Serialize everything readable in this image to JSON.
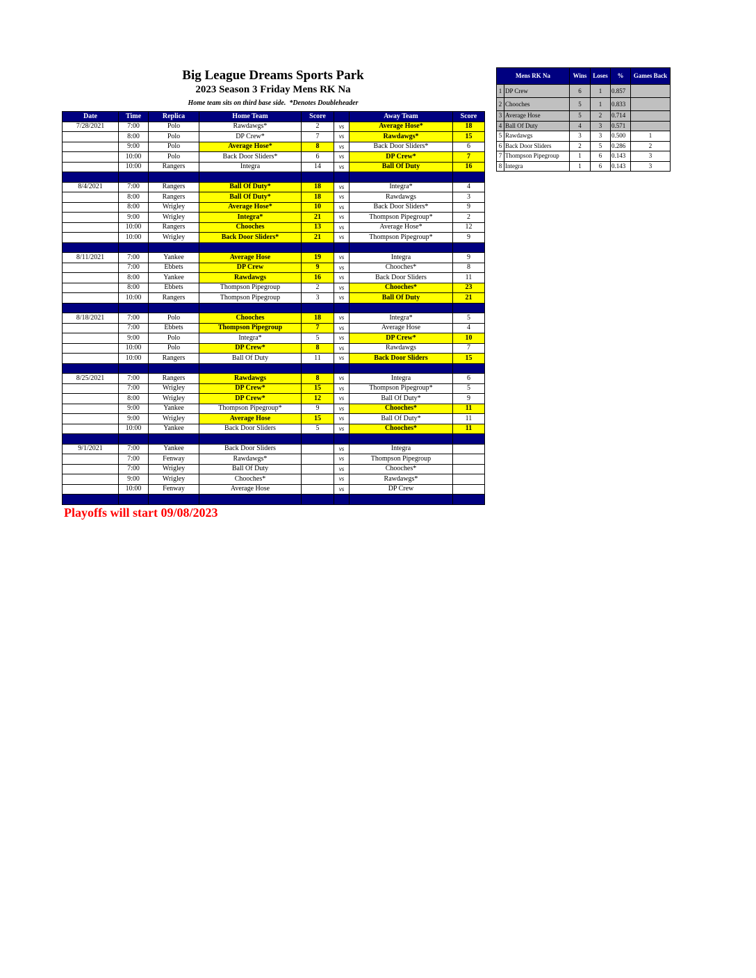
{
  "header": {
    "title": "Big League Dreams Sports Park",
    "subtitle": "2023 Season 3 Friday Mens RK Na",
    "note": "Home team sits on third base side.  *Denotes Doubleheader"
  },
  "schedule": {
    "columns": [
      "Date",
      "Time",
      "Replica",
      "Home Team",
      "Score",
      "Away Team",
      "Score"
    ],
    "vs_label": "vs",
    "weeks": [
      {
        "date": "7/28/2021",
        "games": [
          {
            "time": "7:00",
            "field": "Polo",
            "home": "Rawdawgs*",
            "home_score": 2,
            "away": "Average Hose*",
            "away_score": 18
          },
          {
            "time": "8:00",
            "field": "Polo",
            "home": "DP Crew*",
            "home_score": 7,
            "away": "Rawdawgs*",
            "away_score": 15
          },
          {
            "time": "9:00",
            "field": "Polo",
            "home": "Average Hose*",
            "home_score": 8,
            "away": "Back Door Sliders*",
            "away_score": 6
          },
          {
            "time": "10:00",
            "field": "Polo",
            "home": "Back Door Sliders*",
            "home_score": 6,
            "away": "DP Crew*",
            "away_score": 7
          },
          {
            "time": "10:00",
            "field": "Rangers",
            "home": "Integra",
            "home_score": 14,
            "away": "Ball Of Duty",
            "away_score": 16
          }
        ]
      },
      {
        "date": "8/4/2021",
        "games": [
          {
            "time": "7:00",
            "field": "Rangers",
            "home": "Ball Of Duty*",
            "home_score": 18,
            "away": "Integra*",
            "away_score": 4
          },
          {
            "time": "8:00",
            "field": "Rangers",
            "home": "Ball Of Duty*",
            "home_score": 18,
            "away": "Rawdawgs",
            "away_score": 3
          },
          {
            "time": "8:00",
            "field": "Wrigley",
            "home": "Average Hose*",
            "home_score": 10,
            "away": "Back Door Sliders*",
            "away_score": 9
          },
          {
            "time": "9:00",
            "field": "Wrigley",
            "home": "Integra*",
            "home_score": 21,
            "away": "Thompson Pipegroup*",
            "away_score": 2
          },
          {
            "time": "10:00",
            "field": "Rangers",
            "home": "Chooches",
            "home_score": 13,
            "away": "Average Hose*",
            "away_score": 12
          },
          {
            "time": "10:00",
            "field": "Wrigley",
            "home": "Back Door Sliders*",
            "home_score": 21,
            "away": "Thompson Pipegroup*",
            "away_score": 9
          }
        ]
      },
      {
        "date": "8/11/2021",
        "games": [
          {
            "time": "7:00",
            "field": "Yankee",
            "home": "Average Hose",
            "home_score": 19,
            "away": "Integra",
            "away_score": 9
          },
          {
            "time": "7:00",
            "field": "Ebbets",
            "home": "DP Crew",
            "home_score": 9,
            "away": "Chooches*",
            "away_score": 8
          },
          {
            "time": "8:00",
            "field": "Yankee",
            "home": "Rawdawgs",
            "home_score": 16,
            "away": "Back Door Sliders",
            "away_score": 11
          },
          {
            "time": "8:00",
            "field": "Ebbets",
            "home": "Thompson Pipegroup",
            "home_score": 2,
            "away": "Chooches*",
            "away_score": 23
          },
          {
            "time": "10:00",
            "field": "Rangers",
            "home": "Thompson Pipegroup",
            "home_score": 3,
            "away": "Ball Of Duty",
            "away_score": 21
          }
        ]
      },
      {
        "date": "8/18/2021",
        "games": [
          {
            "time": "7:00",
            "field": "Polo",
            "home": "Chooches",
            "home_score": 18,
            "away": "Integra*",
            "away_score": 5
          },
          {
            "time": "7:00",
            "field": "Ebbets",
            "home": "Thompson Pipegroup",
            "home_score": 7,
            "away": "Average Hose",
            "away_score": 4
          },
          {
            "time": "9:00",
            "field": "Polo",
            "home": "Integra*",
            "home_score": 5,
            "away": "DP Crew*",
            "away_score": 10
          },
          {
            "time": "10:00",
            "field": "Polo",
            "home": "DP Crew*",
            "home_score": 8,
            "away": "Rawdawgs",
            "away_score": 7
          },
          {
            "time": "10:00",
            "field": "Rangers",
            "home": "Ball Of Duty",
            "home_score": 11,
            "away": "Back Door Sliders",
            "away_score": 15
          }
        ]
      },
      {
        "date": "8/25/2021",
        "games": [
          {
            "time": "7:00",
            "field": "Rangers",
            "home": "Rawdawgs",
            "home_score": 8,
            "away": "Integra",
            "away_score": 6
          },
          {
            "time": "7:00",
            "field": "Wrigley",
            "home": "DP Crew*",
            "home_score": 15,
            "away": "Thompson Pipegroup*",
            "away_score": 5
          },
          {
            "time": "8:00",
            "field": "Wrigley",
            "home": "DP Crew*",
            "home_score": 12,
            "away": "Ball Of Duty*",
            "away_score": 9
          },
          {
            "time": "9:00",
            "field": "Yankee",
            "home": "Thompson Pipegroup*",
            "home_score": 9,
            "away": "Chooches*",
            "away_score": 11
          },
          {
            "time": "9:00",
            "field": "Wrigley",
            "home": "Average Hose",
            "home_score": 15,
            "away": "Ball Of Duty*",
            "away_score": 11
          },
          {
            "time": "10:00",
            "field": "Yankee",
            "home": "Back Door Sliders",
            "home_score": 5,
            "away": "Chooches*",
            "away_score": 11
          }
        ]
      },
      {
        "date": "9/1/2021",
        "games": [
          {
            "time": "7:00",
            "field": "Yankee",
            "home": "Back Door Sliders",
            "home_score": null,
            "away": "Integra",
            "away_score": null
          },
          {
            "time": "7:00",
            "field": "Fenway",
            "home": "Rawdawgs*",
            "home_score": null,
            "away": "Thompson Pipegroup",
            "away_score": null
          },
          {
            "time": "7:00",
            "field": "Wrigley",
            "home": "Ball Of Duty",
            "home_score": null,
            "away": "Chooches*",
            "away_score": null
          },
          {
            "time": "9:00",
            "field": "Wrigley",
            "home": "Chooches*",
            "home_score": null,
            "away": "Rawdawgs*",
            "away_score": null
          },
          {
            "time": "10:00",
            "field": "Fenway",
            "home": "Average Hose",
            "home_score": null,
            "away": "DP Crew",
            "away_score": null
          }
        ]
      }
    ]
  },
  "standings": {
    "columns": [
      "Mens RK Na",
      "Wins",
      "Loses",
      "%",
      "Games Back"
    ],
    "rows": [
      {
        "rank": 1,
        "team": "DP Crew",
        "wins": 6,
        "losses": 1,
        "pct": "0.857",
        "games_back": null
      },
      {
        "rank": 2,
        "team": "Chooches",
        "wins": 5,
        "losses": 1,
        "pct": "0.833",
        "games_back": null
      },
      {
        "rank": 3,
        "team": "Average Hose",
        "wins": 5,
        "losses": 2,
        "pct": "0.714",
        "games_back": null
      },
      {
        "rank": 4,
        "team": "Ball Of Duty",
        "wins": 4,
        "losses": 3,
        "pct": "0.571",
        "games_back": null
      },
      {
        "rank": 5,
        "team": "Rawdawgs",
        "wins": 3,
        "losses": 3,
        "pct": "0.500",
        "games_back": 1
      },
      {
        "rank": 6,
        "team": "Back Door Sliders",
        "wins": 2,
        "losses": 5,
        "pct": "0.286",
        "games_back": 2
      },
      {
        "rank": 7,
        "team": "Thompson Pipegroup",
        "wins": 1,
        "losses": 6,
        "pct": "0.143",
        "games_back": 3
      },
      {
        "rank": 8,
        "team": "Integra",
        "wins": 1,
        "losses": 6,
        "pct": "0.143",
        "games_back": 3
      }
    ]
  },
  "footer": {
    "text": "Playoffs will start 09/08/2023"
  }
}
